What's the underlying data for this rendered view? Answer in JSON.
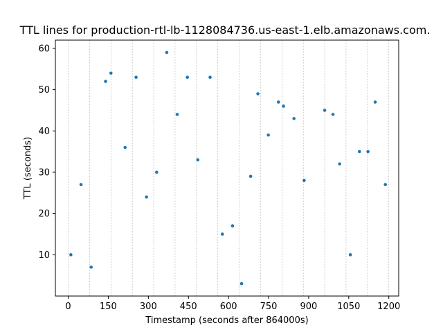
{
  "chart_data": {
    "type": "scatter",
    "title": "TTL lines for  production-rtl-lb-1128084736.us-east-1.elb.amazonaws.com.",
    "xlabel": "Timestamp (seconds after 864000s)",
    "ylabel": "TTL (seconds)",
    "xlim": [
      -48,
      1237
    ],
    "ylim": [
      0,
      62
    ],
    "xticks": [
      0,
      150,
      300,
      450,
      600,
      750,
      900,
      1050,
      1200
    ],
    "yticks": [
      10,
      20,
      30,
      40,
      50,
      60
    ],
    "vertical_gridlines": [
      0,
      80,
      160,
      240,
      320,
      400,
      480,
      560,
      640,
      720,
      800,
      880,
      960,
      1040,
      1120,
      1200
    ],
    "grid": "vertical dashed",
    "color": "#1f77b4",
    "series": [
      {
        "points": [
          {
            "x": 10,
            "y": 10
          },
          {
            "x": 48,
            "y": 27
          },
          {
            "x": 86,
            "y": 7
          },
          {
            "x": 140,
            "y": 52
          },
          {
            "x": 160,
            "y": 54
          },
          {
            "x": 213,
            "y": 36
          },
          {
            "x": 254,
            "y": 53
          },
          {
            "x": 293,
            "y": 24
          },
          {
            "x": 331,
            "y": 30
          },
          {
            "x": 369,
            "y": 59
          },
          {
            "x": 408,
            "y": 44
          },
          {
            "x": 446,
            "y": 53
          },
          {
            "x": 485,
            "y": 33
          },
          {
            "x": 531,
            "y": 53
          },
          {
            "x": 577,
            "y": 15
          },
          {
            "x": 615,
            "y": 17
          },
          {
            "x": 649,
            "y": 3
          },
          {
            "x": 683,
            "y": 29
          },
          {
            "x": 710,
            "y": 49
          },
          {
            "x": 749,
            "y": 39
          },
          {
            "x": 787,
            "y": 47
          },
          {
            "x": 806,
            "y": 46
          },
          {
            "x": 845,
            "y": 43
          },
          {
            "x": 883,
            "y": 28
          },
          {
            "x": 960,
            "y": 45
          },
          {
            "x": 991,
            "y": 44
          },
          {
            "x": 1016,
            "y": 32
          },
          {
            "x": 1056,
            "y": 10
          },
          {
            "x": 1090,
            "y": 35
          },
          {
            "x": 1122,
            "y": 35
          },
          {
            "x": 1149,
            "y": 47
          },
          {
            "x": 1187,
            "y": 27
          }
        ]
      }
    ]
  }
}
